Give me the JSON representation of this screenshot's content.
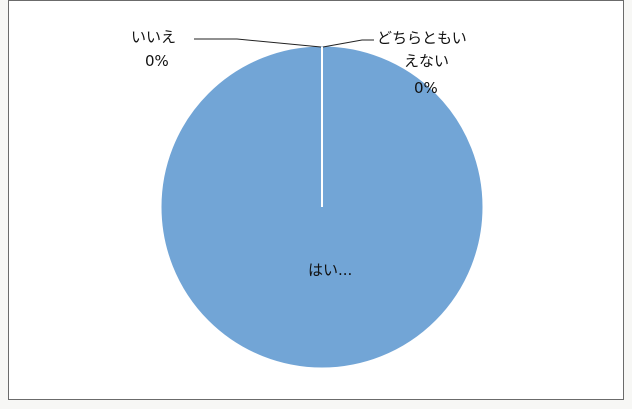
{
  "chart_data": {
    "type": "pie",
    "title": "",
    "slices": [
      {
        "label": "はい",
        "value": 100,
        "display": "はい..."
      },
      {
        "label": "いいえ",
        "value": 0,
        "display_label": "いいえ",
        "display_value": "0%"
      },
      {
        "label": "どちらともいえない",
        "value": 0,
        "display_label_line1": "どちらともい",
        "display_label_line2": "えない",
        "display_value": "0%"
      }
    ],
    "colors": {
      "slice_fill": "#72a5d6",
      "slice_edge": "#ffffff",
      "leader_line": "#222222"
    },
    "legend": "none"
  }
}
